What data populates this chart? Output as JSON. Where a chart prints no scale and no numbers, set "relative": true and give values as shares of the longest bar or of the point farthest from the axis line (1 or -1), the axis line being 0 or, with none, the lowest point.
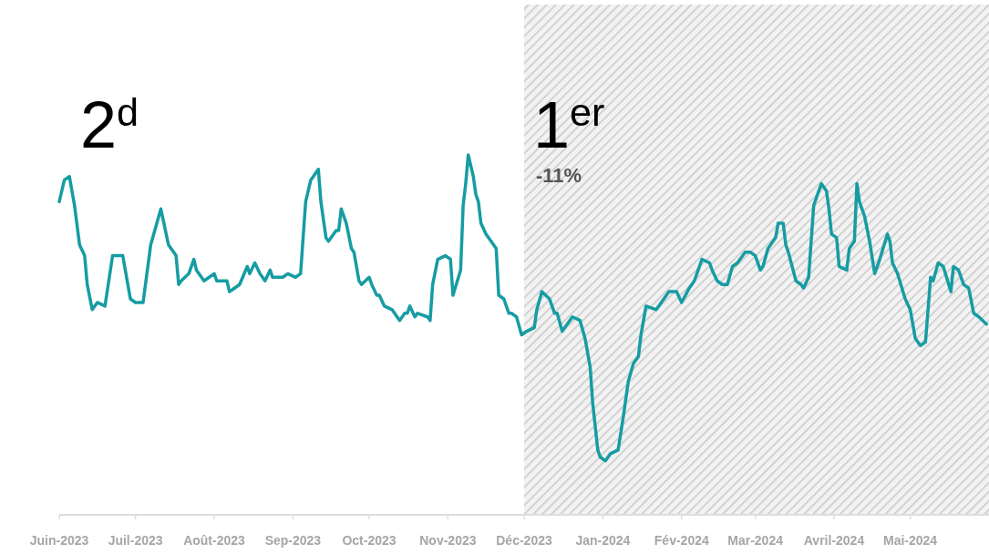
{
  "chart_data": {
    "type": "line",
    "relative": true,
    "annotations": [
      "2$^{d}$",
      "1$^{er}$",
      "-11%"
    ],
    "xlim": [
      "2023-06-01",
      "2024-06-01"
    ],
    "xticks": [
      {
        "value": "2023-06-01",
        "label": "Juin-2023"
      },
      {
        "value": "2023-07-01",
        "label": "Juil-2023"
      },
      {
        "value": "2023-08-01",
        "label": "Août-2023"
      },
      {
        "value": "2023-09-01",
        "label": "Sep-2023"
      },
      {
        "value": "2023-10-01",
        "label": "Oct-2023"
      },
      {
        "value": "2023-11-01",
        "label": "Nov-2023"
      },
      {
        "value": "2023-12-01",
        "label": "Déc-2023"
      },
      {
        "value": "2024-01-01",
        "label": "Jan-2024"
      },
      {
        "value": "2024-02-01",
        "label": "Fév-2024"
      },
      {
        "value": "2024-03-01",
        "label": "Mar-2024"
      },
      {
        "value": "2024-04-01",
        "label": "Avril-2024"
      },
      {
        "value": "2024-05-01",
        "label": "Mai-2024"
      }
    ],
    "bands": [
      {
        "axis": "x",
        "from": "2023-12-01",
        "to": "2024-06-01",
        "color": "#c8c8c8"
      }
    ],
    "marker": "none",
    "line_style": "solid",
    "series": [
      {
        "color": "#169ca3",
        "x": [
          "2023-06-01",
          "2023-06-03",
          "2023-06-05",
          "2023-06-07",
          "2023-06-09",
          "2023-06-11",
          "2023-06-12",
          "2023-06-14",
          "2023-06-16",
          "2023-06-19",
          "2023-06-22",
          "2023-06-24",
          "2023-06-26",
          "2023-06-29",
          "2023-07-01",
          "2023-07-04",
          "2023-07-07",
          "2023-07-11",
          "2023-07-14",
          "2023-07-17",
          "2023-07-18",
          "2023-07-19",
          "2023-07-22",
          "2023-07-24",
          "2023-07-25",
          "2023-07-28",
          "2023-08-01",
          "2023-08-02",
          "2023-08-06",
          "2023-08-07",
          "2023-08-11",
          "2023-08-14",
          "2023-08-15",
          "2023-08-17",
          "2023-08-19",
          "2023-08-21",
          "2023-08-23",
          "2023-08-24",
          "2023-08-28",
          "2023-08-30",
          "2023-09-02",
          "2023-09-04",
          "2023-09-06",
          "2023-09-08",
          "2023-09-11",
          "2023-09-12",
          "2023-09-14",
          "2023-09-15",
          "2023-09-18",
          "2023-09-19",
          "2023-09-20",
          "2023-09-22",
          "2023-09-24",
          "2023-09-25",
          "2023-09-27",
          "2023-09-28",
          "2023-10-01",
          "2023-10-02",
          "2023-10-04",
          "2023-10-05",
          "2023-10-07",
          "2023-10-10",
          "2023-10-11",
          "2023-10-13",
          "2023-10-15",
          "2023-10-16",
          "2023-10-17",
          "2023-10-19",
          "2023-10-20",
          "2023-10-24",
          "2023-10-25",
          "2023-10-26",
          "2023-10-28",
          "2023-10-31",
          "2023-11-02",
          "2023-11-03",
          "2023-11-06",
          "2023-11-07",
          "2023-11-08",
          "2023-11-09",
          "2023-11-11",
          "2023-11-12",
          "2023-11-13",
          "2023-11-14",
          "2023-11-16",
          "2023-11-18",
          "2023-11-20",
          "2023-11-21",
          "2023-11-23",
          "2023-11-25",
          "2023-11-26",
          "2023-11-28",
          "2023-11-30",
          "2023-12-02",
          "2023-12-05",
          "2023-12-06",
          "2023-12-08",
          "2023-12-11",
          "2023-12-13",
          "2023-12-14",
          "2023-12-16",
          "2023-12-20",
          "2023-12-23",
          "2023-12-25",
          "2023-12-27",
          "2023-12-28",
          "2023-12-30",
          "2023-12-31",
          "2024-01-02",
          "2024-01-04",
          "2024-01-07",
          "2024-01-09",
          "2024-01-11",
          "2024-01-13",
          "2024-01-15",
          "2024-01-16",
          "2024-01-18",
          "2024-01-22",
          "2024-01-24",
          "2024-01-27",
          "2024-01-30",
          "2024-02-01",
          "2024-02-04",
          "2024-02-06",
          "2024-02-09",
          "2024-02-12",
          "2024-02-13",
          "2024-02-15",
          "2024-02-17",
          "2024-02-19",
          "2024-02-21",
          "2024-02-23",
          "2024-02-26",
          "2024-02-28",
          "2024-03-01",
          "2024-03-03",
          "2024-03-04",
          "2024-03-06",
          "2024-03-09",
          "2024-03-10",
          "2024-03-12",
          "2024-03-13",
          "2024-03-14",
          "2024-03-17",
          "2024-03-19",
          "2024-03-20",
          "2024-03-22",
          "2024-03-24",
          "2024-03-27",
          "2024-03-29",
          "2024-03-30",
          "2024-03-31",
          "2024-04-02",
          "2024-04-03",
          "2024-04-06",
          "2024-04-07",
          "2024-04-09",
          "2024-04-10",
          "2024-04-11",
          "2024-04-13",
          "2024-04-15",
          "2024-04-17",
          "2024-04-19",
          "2024-04-22",
          "2024-04-23",
          "2024-04-24",
          "2024-04-26",
          "2024-04-29",
          "2024-05-01",
          "2024-05-03",
          "2024-05-05",
          "2024-05-07",
          "2024-05-09",
          "2024-05-10",
          "2024-05-12",
          "2024-05-14",
          "2024-05-17",
          "2024-05-18",
          "2024-05-20",
          "2024-05-22",
          "2024-05-24",
          "2024-05-26",
          "2024-05-28",
          "2024-05-31"
        ],
        "values": [
          0.87,
          0.93,
          0.94,
          0.86,
          0.75,
          0.72,
          0.64,
          0.57,
          0.59,
          0.58,
          0.72,
          0.72,
          0.72,
          0.6,
          0.59,
          0.59,
          0.75,
          0.85,
          0.75,
          0.72,
          0.64,
          0.65,
          0.67,
          0.71,
          0.68,
          0.65,
          0.67,
          0.65,
          0.65,
          0.62,
          0.64,
          0.69,
          0.67,
          0.7,
          0.67,
          0.65,
          0.68,
          0.66,
          0.66,
          0.67,
          0.66,
          0.67,
          0.87,
          0.93,
          0.96,
          0.87,
          0.77,
          0.76,
          0.79,
          0.79,
          0.85,
          0.81,
          0.74,
          0.73,
          0.65,
          0.64,
          0.66,
          0.64,
          0.61,
          0.61,
          0.58,
          0.57,
          0.56,
          0.54,
          0.56,
          0.56,
          0.58,
          0.55,
          0.56,
          0.55,
          0.54,
          0.64,
          0.71,
          0.72,
          0.71,
          0.61,
          0.68,
          0.86,
          0.92,
          1,
          0.94,
          0.89,
          0.87,
          0.81,
          0.78,
          0.76,
          0.74,
          0.61,
          0.6,
          0.56,
          0.56,
          0.55,
          0.5,
          0.51,
          0.52,
          0.57,
          0.62,
          0.6,
          0.56,
          0.56,
          0.51,
          0.55,
          0.54,
          0.49,
          0.41,
          0.31,
          0.18,
          0.16,
          0.15,
          0.17,
          0.18,
          0.27,
          0.37,
          0.42,
          0.44,
          0.5,
          0.58,
          0.57,
          0.59,
          0.62,
          0.62,
          0.59,
          0.63,
          0.65,
          0.71,
          0.7,
          0.68,
          0.65,
          0.64,
          0.64,
          0.69,
          0.7,
          0.73,
          0.73,
          0.72,
          0.68,
          0.69,
          0.74,
          0.77,
          0.81,
          0.81,
          0.75,
          0.73,
          0.65,
          0.64,
          0.63,
          0.66,
          0.86,
          0.92,
          0.9,
          0.85,
          0.78,
          0.77,
          0.69,
          0.68,
          0.74,
          0.76,
          0.92,
          0.87,
          0.83,
          0.76,
          0.67,
          0.71,
          0.78,
          0.76,
          0.7,
          0.67,
          0.6,
          0.57,
          0.49,
          0.47,
          0.48,
          0.66,
          0.65,
          0.7,
          0.69,
          0.62,
          0.69,
          0.68,
          0.64,
          0.63,
          0.56,
          0.55,
          0.53
        ]
      }
    ]
  }
}
